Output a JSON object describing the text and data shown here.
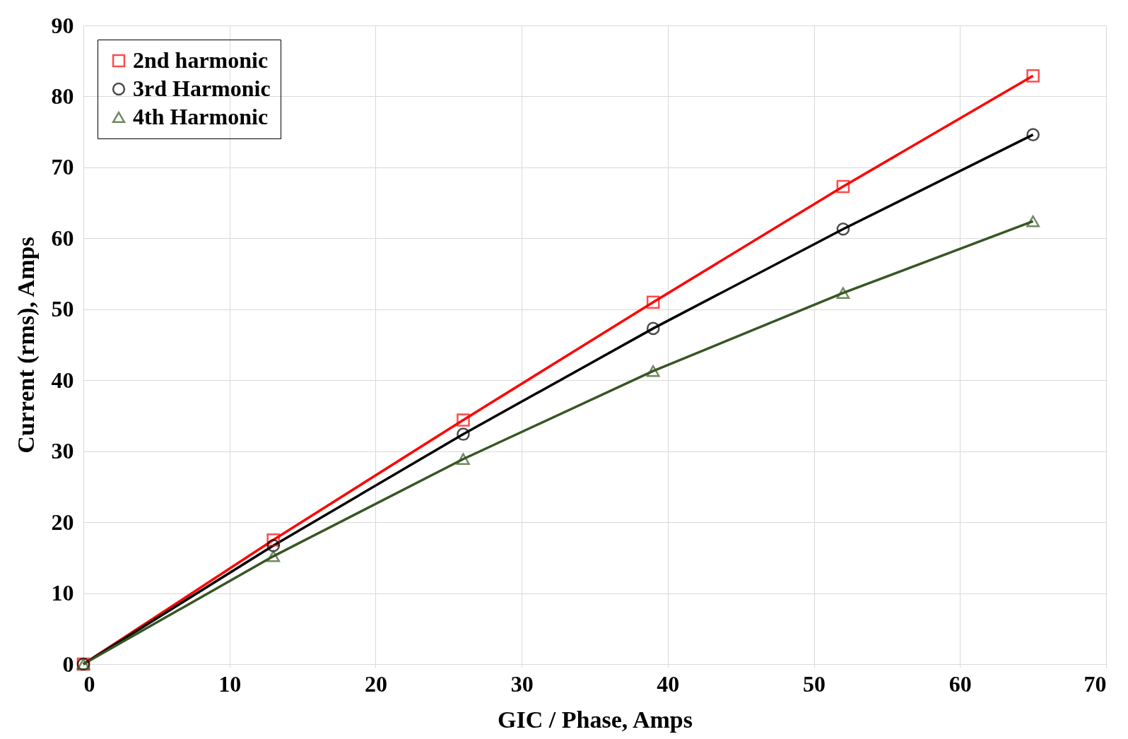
{
  "chart_data": {
    "type": "line",
    "xlabel": "GIC / Phase, Amps",
    "ylabel": "Current (rms), Amps",
    "x": [
      0,
      13,
      26,
      39,
      52,
      65
    ],
    "series": [
      {
        "name": "2nd harmonic",
        "color": "#ff0000",
        "marker": "square",
        "values": [
          0,
          17.5,
          34.4,
          51.0,
          67.3,
          82.9
        ]
      },
      {
        "name": "3rd Harmonic",
        "color": "#000000",
        "marker": "circle",
        "values": [
          0,
          16.7,
          32.4,
          47.3,
          61.3,
          74.6
        ]
      },
      {
        "name": "4th Harmonic",
        "color": "#375623",
        "marker": "triangle",
        "values": [
          0,
          15.2,
          28.9,
          41.3,
          52.3,
          62.4
        ]
      }
    ],
    "xlim": [
      0,
      70
    ],
    "xticks": [
      0,
      10,
      20,
      30,
      40,
      50,
      60,
      70
    ],
    "ylim": [
      0,
      90
    ],
    "yticks": [
      0,
      10,
      20,
      30,
      40,
      50,
      60,
      70,
      80,
      90
    ],
    "grid": true,
    "legend": "top left",
    "line_style": "solid"
  }
}
